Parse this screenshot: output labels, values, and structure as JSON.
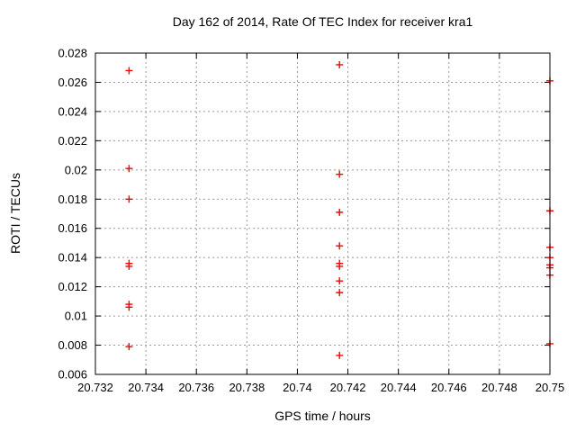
{
  "chart_data": {
    "type": "scatter",
    "title": "Day 162 of 2014, Rate Of TEC Index for receiver kra1",
    "xlabel": "GPS time / hours",
    "ylabel": "ROTI / TECUs",
    "xlim": [
      20.732,
      20.75
    ],
    "ylim": [
      0.006,
      0.028
    ],
    "xticks": [
      20.732,
      20.734,
      20.736,
      20.738,
      20.74,
      20.742,
      20.744,
      20.746,
      20.748,
      20.75
    ],
    "xtick_labels": [
      "20.732",
      "20.734",
      "20.736",
      "20.738",
      "20.74",
      "20.742",
      "20.744",
      "20.746",
      "20.748",
      "20.75"
    ],
    "yticks": [
      0.006,
      0.008,
      0.01,
      0.012,
      0.014,
      0.016,
      0.018,
      0.02,
      0.022,
      0.024,
      0.026,
      0.028
    ],
    "ytick_labels": [
      "0.006",
      "0.008",
      "0.01",
      "0.012",
      "0.014",
      "0.016",
      "0.018",
      "0.02",
      "0.022",
      "0.024",
      "0.026",
      "0.028"
    ],
    "grid": true,
    "legend_position": "none",
    "marker": {
      "shape": "plus",
      "color": "#ff0000",
      "size": 9
    },
    "series": [
      {
        "name": "ROTI",
        "points": [
          [
            20.733333,
            0.0268
          ],
          [
            20.733333,
            0.0201
          ],
          [
            20.733333,
            0.018
          ],
          [
            20.733333,
            0.0136
          ],
          [
            20.733333,
            0.0134
          ],
          [
            20.733333,
            0.0108
          ],
          [
            20.733333,
            0.0106
          ],
          [
            20.733333,
            0.0079
          ],
          [
            20.741667,
            0.0272
          ],
          [
            20.741667,
            0.0197
          ],
          [
            20.741667,
            0.0171
          ],
          [
            20.741667,
            0.0148
          ],
          [
            20.741667,
            0.0136
          ],
          [
            20.741667,
            0.0134
          ],
          [
            20.741667,
            0.0124
          ],
          [
            20.741667,
            0.0116
          ],
          [
            20.741667,
            0.0073
          ],
          [
            20.75,
            0.0261
          ],
          [
            20.75,
            0.0172
          ],
          [
            20.75,
            0.0147
          ],
          [
            20.75,
            0.014
          ],
          [
            20.75,
            0.0135
          ],
          [
            20.75,
            0.0133
          ],
          [
            20.75,
            0.0128
          ],
          [
            20.75,
            0.0081
          ]
        ]
      }
    ]
  },
  "colors": {
    "marker": "#ff0000",
    "grid": "#9a9a9a",
    "axis": "#000000",
    "text": "#000000",
    "background": "#ffffff"
  }
}
